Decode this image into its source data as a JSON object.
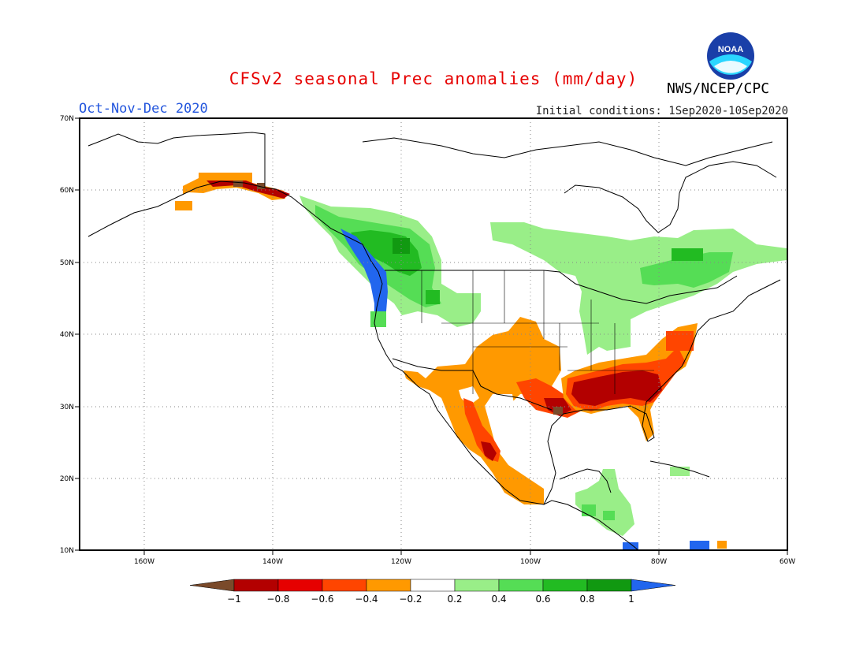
{
  "header": {
    "title": "CFSv2 seasonal Prec anomalies (mm/day)",
    "season": "Oct-Nov-Dec 2020",
    "agency": "NWS/NCEP/CPC",
    "initial_conditions": "Initial conditions: 1Sep2020-10Sep2020",
    "logo_text": "NOAA"
  },
  "map": {
    "lon_range": [
      -172,
      -60
    ],
    "lat_range": [
      10,
      70
    ],
    "lon_ticks": [
      {
        "value": -160,
        "label": "160W"
      },
      {
        "value": -140,
        "label": "140W"
      },
      {
        "value": -120,
        "label": "120W"
      },
      {
        "value": -100,
        "label": "100W"
      },
      {
        "value": -80,
        "label": "80W"
      },
      {
        "value": -60,
        "label": "60W"
      }
    ],
    "lat_ticks": [
      {
        "value": 10,
        "label": "10N"
      },
      {
        "value": 20,
        "label": "20N"
      },
      {
        "value": 30,
        "label": "30N"
      },
      {
        "value": 40,
        "label": "40N"
      },
      {
        "value": 50,
        "label": "50N"
      },
      {
        "value": 60,
        "label": "60N"
      },
      {
        "value": 70,
        "label": "70N"
      }
    ],
    "grid": "dotted"
  },
  "legend": {
    "labels": [
      "-1",
      "-0.8",
      "-0.6",
      "-0.4",
      "-0.2",
      "0.2",
      "0.4",
      "0.6",
      "0.8",
      "1"
    ],
    "colors": [
      "#7a4a2a",
      "#b30000",
      "#e60000",
      "#ff4500",
      "#ff9900",
      "#ffffff",
      "#99ee88",
      "#55dd55",
      "#22bb22",
      "#119911",
      "#2266ee"
    ]
  },
  "anomaly_regions": [
    {
      "name": "alaska-south-coast",
      "level": -0.4,
      "color": "#ff9900"
    },
    {
      "name": "alaska-panhandle",
      "level": -0.8,
      "color": "#b30000"
    },
    {
      "name": "pacific-northwest-coast",
      "level": 1,
      "color": "#2266ee"
    },
    {
      "name": "northwest-interior",
      "level": 0.6,
      "color": "#55dd55"
    },
    {
      "name": "great-lakes-quebec",
      "level": 0.4,
      "color": "#99ee88"
    },
    {
      "name": "southwest-mexico",
      "level": -0.4,
      "color": "#ff9900"
    },
    {
      "name": "texas-gulf",
      "level": -0.6,
      "color": "#ff4500"
    },
    {
      "name": "southeast-us",
      "level": -0.8,
      "color": "#b30000"
    },
    {
      "name": "central-america",
      "level": 0.4,
      "color": "#99ee88"
    }
  ]
}
